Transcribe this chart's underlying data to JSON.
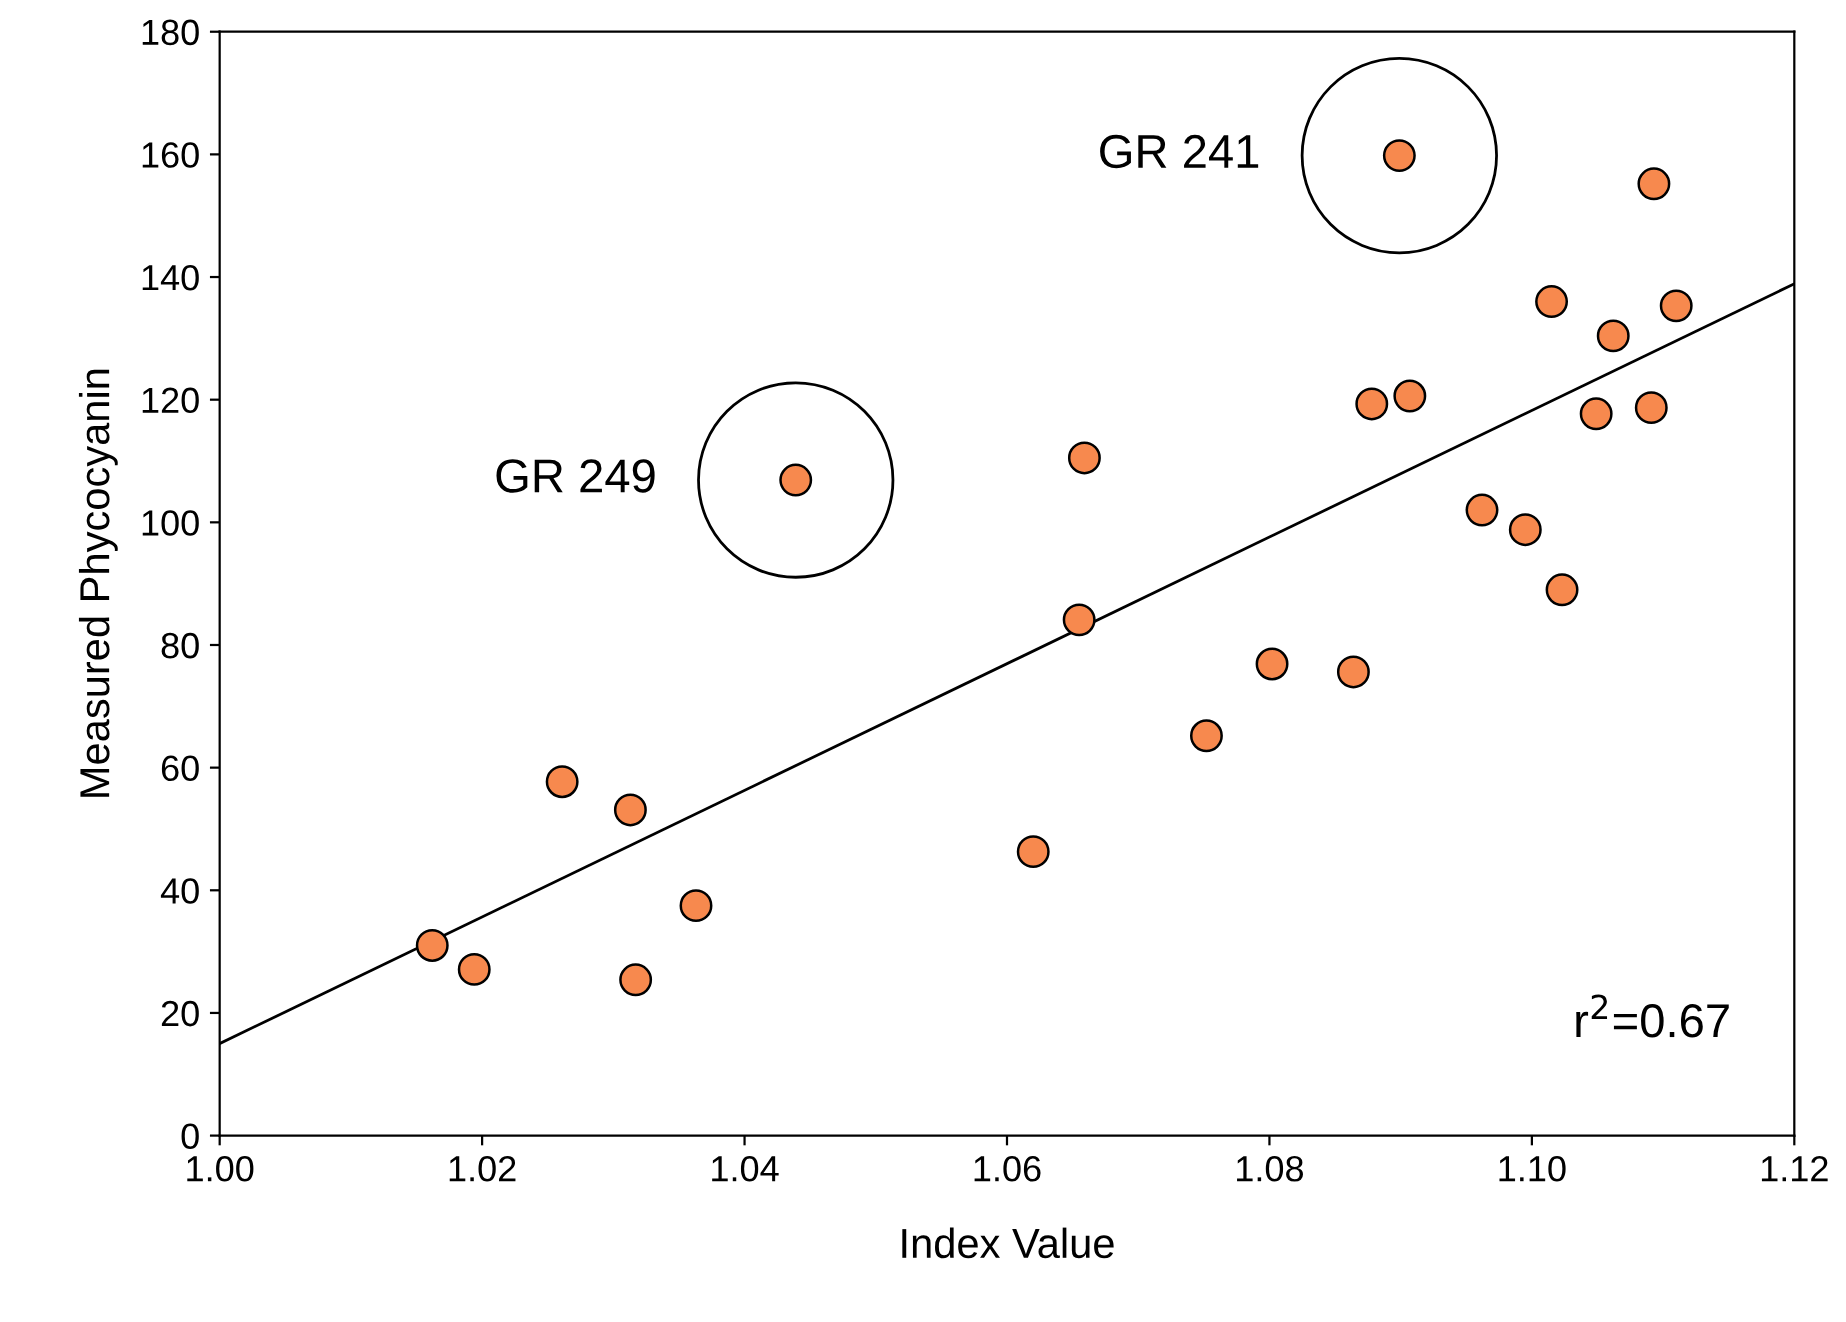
{
  "chart_data": {
    "type": "scatter",
    "xlabel": "Index Value",
    "ylabel": "Measured Phycocyanin",
    "xlim": [
      1.0,
      1.12
    ],
    "xticks": [
      {
        "value": 1.0,
        "label": "1.00"
      },
      {
        "value": 1.02,
        "label": "1.02"
      },
      {
        "value": 1.04,
        "label": "1.04"
      },
      {
        "value": 1.06,
        "label": "1.06"
      },
      {
        "value": 1.08,
        "label": "1.08"
      },
      {
        "value": 1.1,
        "label": "1.10"
      },
      {
        "value": 1.12,
        "label": "1.12"
      }
    ],
    "ylim": [
      0,
      180
    ],
    "yticks": [
      0,
      20,
      40,
      60,
      80,
      100,
      120,
      140,
      160,
      180
    ],
    "grid": false,
    "legend": false,
    "series": [
      {
        "marker": "circle",
        "color": "#f7894e",
        "x": [
          1.0162,
          1.0194,
          1.0261,
          1.0313,
          1.0317,
          1.0363,
          1.0439,
          1.062,
          1.0655,
          1.0659,
          1.0752,
          1.0802,
          1.0864,
          1.0878,
          1.0899,
          1.0907,
          1.0962,
          1.0995,
          1.1015,
          1.1023,
          1.1049,
          1.1062,
          1.1093,
          1.1091,
          1.111
        ],
        "values": [
          31.0,
          27.1,
          57.7,
          53.1,
          25.4,
          37.5,
          106.9,
          46.3,
          84.1,
          110.5,
          65.2,
          76.9,
          75.6,
          119.3,
          159.8,
          120.6,
          102.0,
          98.8,
          136.0,
          89.0,
          117.7,
          130.4,
          155.2,
          118.7,
          135.3
        ]
      },
      {
        "type": "line",
        "color": "#000000",
        "x": [
          1.0,
          1.12
        ],
        "values": [
          15.0,
          138.9
        ]
      }
    ],
    "annotations": [
      {
        "text": "GR 249",
        "x": 1.0439,
        "y": 106.9
      },
      {
        "text": "GR 241",
        "x": 1.0899,
        "y": 159.8
      },
      "r$^{2}$=0.67"
    ]
  }
}
